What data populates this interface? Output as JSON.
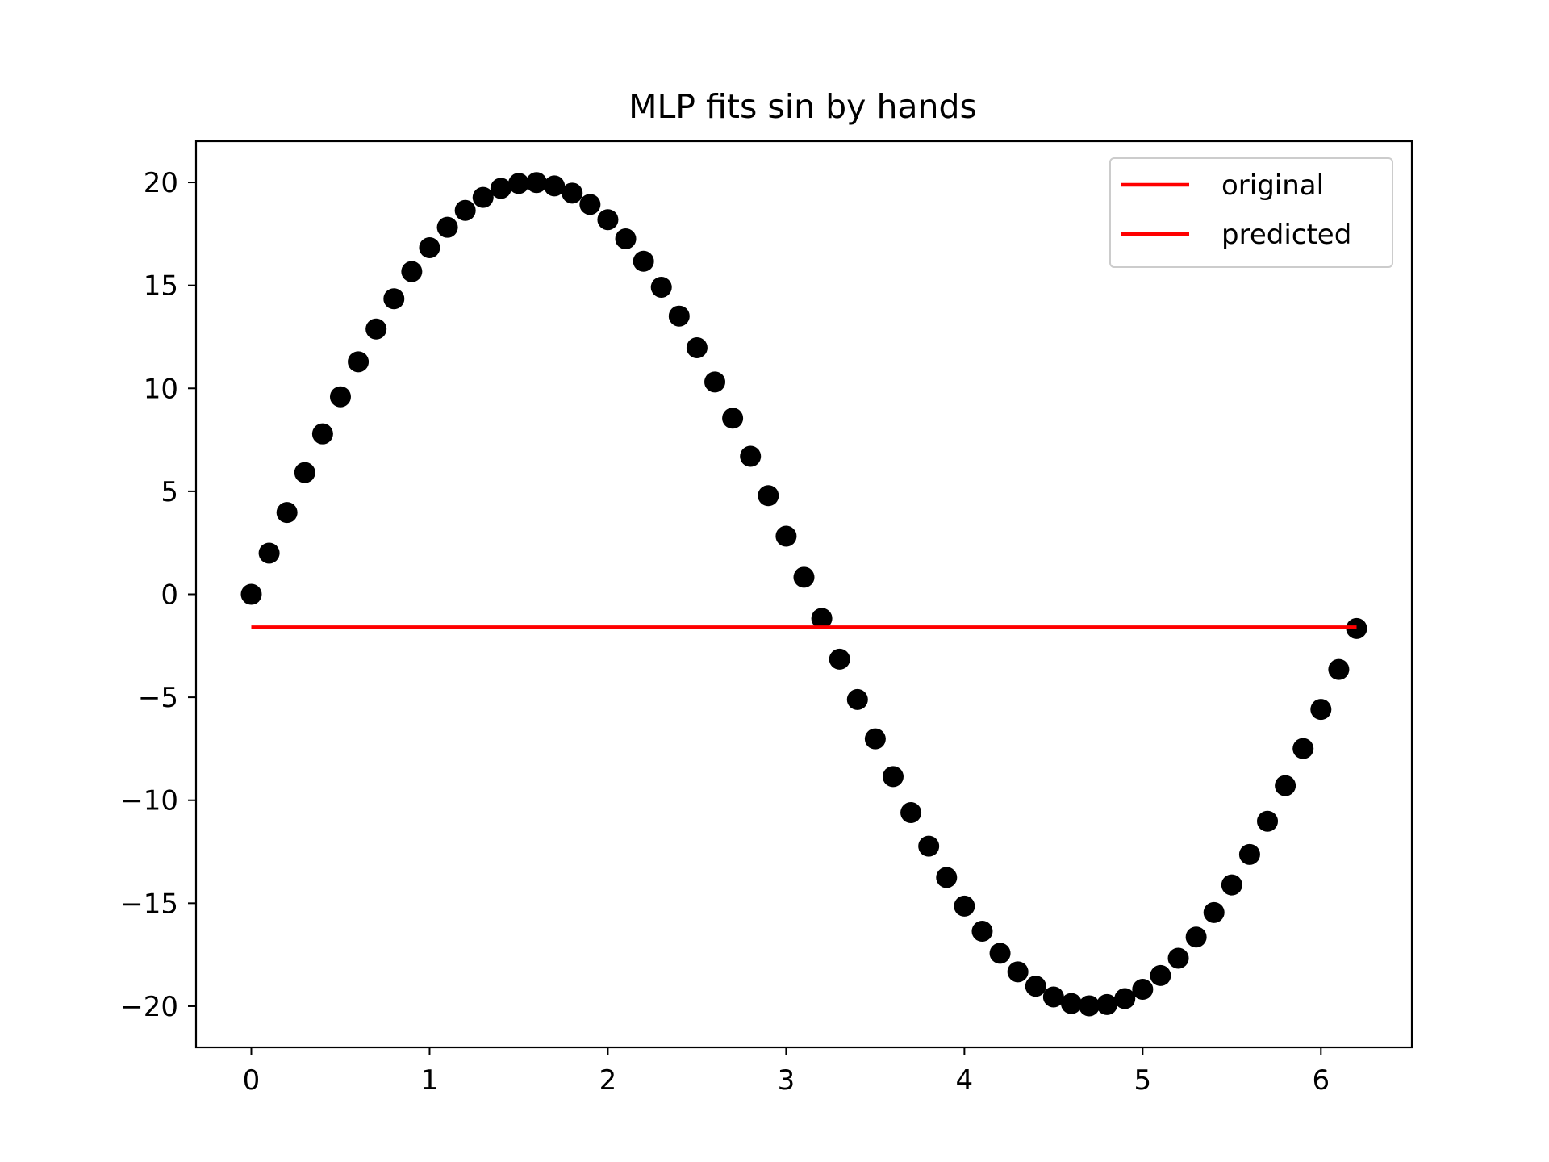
{
  "chart_data": {
    "type": "scatter",
    "title": "MLP fits sin by hands",
    "xlabel": "",
    "ylabel": "",
    "xlim": [
      -0.31,
      6.51
    ],
    "ylim": [
      -22.0,
      22.0
    ],
    "xticks": [
      0,
      1,
      2,
      3,
      4,
      5,
      6
    ],
    "xtick_labels": [
      "0",
      "1",
      "2",
      "3",
      "4",
      "5",
      "6"
    ],
    "yticks": [
      20,
      15,
      10,
      5,
      0,
      -5,
      -10,
      -15,
      -20
    ],
    "ytick_labels": [
      "20",
      "15",
      "10",
      "5",
      "0",
      "−5",
      "−10",
      "−15",
      "−20"
    ],
    "grid": false,
    "legend_position": "upper right",
    "series": [
      {
        "name": "original",
        "kind": "scatter",
        "color": "#000000",
        "x": [
          0.0,
          0.1,
          0.2,
          0.3,
          0.4,
          0.5,
          0.6,
          0.7,
          0.8,
          0.9,
          1.0,
          1.1,
          1.2,
          1.3,
          1.4,
          1.5,
          1.6,
          1.7,
          1.8,
          1.9,
          2.0,
          2.1,
          2.2,
          2.3,
          2.4,
          2.5,
          2.6,
          2.7,
          2.8,
          2.9,
          3.0,
          3.1,
          3.2,
          3.3,
          3.4,
          3.5,
          3.6,
          3.7,
          3.8,
          3.9,
          4.0,
          4.1,
          4.2,
          4.3,
          4.4,
          4.5,
          4.6,
          4.7,
          4.8,
          4.9,
          5.0,
          5.1,
          5.2,
          5.3,
          5.4,
          5.5,
          5.6,
          5.7,
          5.8,
          5.9,
          6.0,
          6.1,
          6.2
        ],
        "y": [
          0.0,
          2.0,
          3.97,
          5.91,
          7.79,
          9.59,
          11.29,
          12.88,
          14.35,
          15.67,
          16.83,
          17.82,
          18.64,
          19.27,
          19.71,
          19.95,
          19.99,
          19.83,
          19.48,
          18.93,
          18.19,
          17.26,
          16.17,
          14.91,
          13.51,
          11.97,
          10.31,
          8.55,
          6.7,
          4.79,
          2.82,
          0.83,
          -1.17,
          -3.15,
          -5.11,
          -7.02,
          -8.85,
          -10.6,
          -12.23,
          -13.75,
          -15.14,
          -16.36,
          -17.43,
          -18.33,
          -19.03,
          -19.55,
          -19.87,
          -19.98,
          -19.92,
          -19.63,
          -19.18,
          -18.51,
          -17.67,
          -16.64,
          -15.45,
          -14.11,
          -12.63,
          -11.02,
          -9.29,
          -7.49,
          -5.59,
          -3.65,
          -1.66
        ]
      },
      {
        "name": "predicted",
        "kind": "line",
        "color": "#ff0000",
        "x": [
          0.0,
          6.2
        ],
        "y": [
          -1.6,
          -1.6
        ]
      }
    ],
    "legend": [
      {
        "label": "original",
        "color": "#ff0000"
      },
      {
        "label": "predicted",
        "color": "#ff0000"
      }
    ]
  }
}
